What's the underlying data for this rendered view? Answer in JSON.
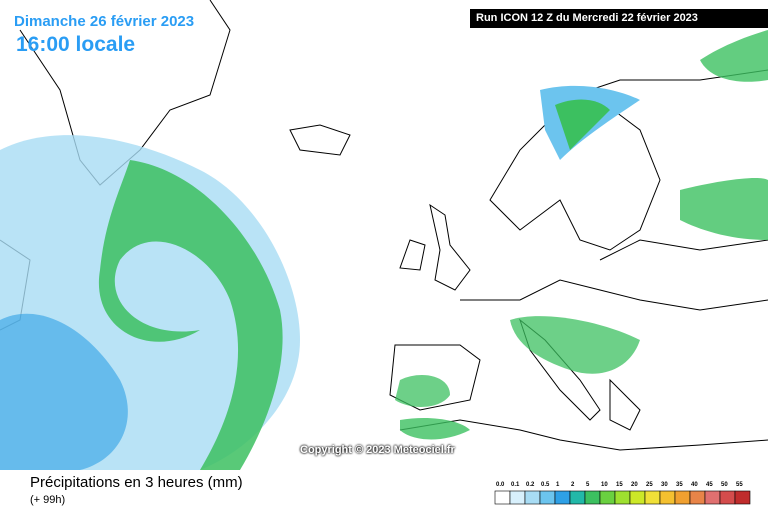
{
  "header": {
    "date": "Dimanche 26 février 2023",
    "time": "16:00 locale",
    "run": "Run ICON 12 Z du Mercredi 22 février 2023"
  },
  "copyright": "Copyright © 2023 Meteociel.fr",
  "footer": {
    "title": "Précipitations en 3 heures (mm)",
    "lead": "(+ 99h)"
  },
  "legend": [
    {
      "label": "0.0",
      "color": "#ffffff"
    },
    {
      "label": "0.1",
      "color": "#d8f0fc"
    },
    {
      "label": "0.2",
      "color": "#a8dcf4"
    },
    {
      "label": "0.5",
      "color": "#6cc4ee"
    },
    {
      "label": "1",
      "color": "#2ea0e6"
    },
    {
      "label": "2",
      "color": "#22b8a8"
    },
    {
      "label": "5",
      "color": "#3cc060"
    },
    {
      "label": "10",
      "color": "#6ad040"
    },
    {
      "label": "15",
      "color": "#9ee030"
    },
    {
      "label": "20",
      "color": "#cce828"
    },
    {
      "label": "25",
      "color": "#f0e038"
    },
    {
      "label": "30",
      "color": "#f4c030"
    },
    {
      "label": "35",
      "color": "#f0a030"
    },
    {
      "label": "40",
      "color": "#e88448"
    },
    {
      "label": "45",
      "color": "#e07070"
    },
    {
      "label": "50",
      "color": "#d44c4c"
    },
    {
      "label": "55",
      "color": "#c02c2c"
    }
  ]
}
